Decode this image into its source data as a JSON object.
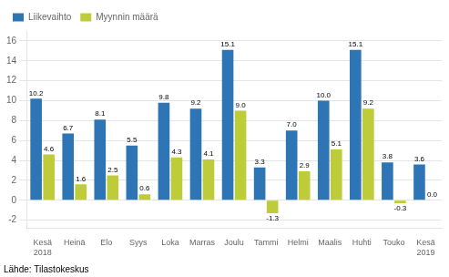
{
  "chart_data": {
    "type": "bar",
    "categories": [
      "Kesä\n2018",
      "Heinä",
      "Elo",
      "Syys",
      "Loka",
      "Marras",
      "Joulu",
      "Tammi",
      "Helmi",
      "Maalis",
      "Huhti",
      "Touko",
      "Kesä\n2019"
    ],
    "series": [
      {
        "name": "Liikevaihto",
        "color": "#2E75B6",
        "values": [
          10.2,
          6.7,
          8.1,
          5.5,
          9.8,
          9.2,
          15.1,
          3.3,
          7.0,
          10.0,
          15.1,
          3.8,
          3.6
        ],
        "value_labels": [
          "10.2",
          "6.7",
          "8.1",
          "5.5",
          "9.8",
          "9.2",
          "15.1",
          "3.3",
          "7.0",
          "10.0",
          "15.1",
          "3.8",
          "3.6"
        ]
      },
      {
        "name": "Myynnin määrä",
        "color": "#BFCC3A",
        "values": [
          4.6,
          1.6,
          2.5,
          0.6,
          4.3,
          4.1,
          9.0,
          -1.3,
          2.9,
          5.1,
          9.2,
          -0.3,
          0.0
        ],
        "value_labels": [
          "4.6",
          "1.6",
          "2.5",
          "0.6",
          "4.3",
          "4.1",
          "9.0",
          "-1.3",
          "2.9",
          "5.1",
          "9.2",
          "-0.3",
          "0.0"
        ]
      }
    ],
    "ylim": [
      -2.8,
      17.0
    ],
    "yticks": [
      -2,
      0,
      2,
      4,
      6,
      8,
      10,
      12,
      14,
      16
    ],
    "grid": true,
    "legend": "upper left",
    "data_labels": true,
    "annotation": "Lähde: Tilastokeskus"
  }
}
